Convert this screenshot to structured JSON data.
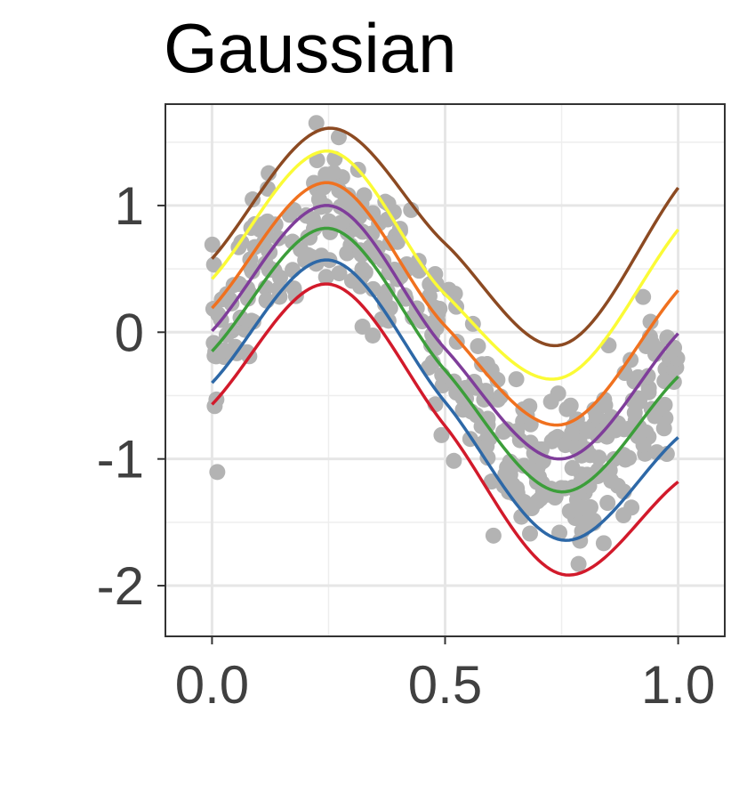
{
  "chart_data": {
    "type": "scatter",
    "title": "Gaussian",
    "xlabel": "",
    "ylabel": "",
    "xlim": [
      -0.1,
      1.1
    ],
    "ylim": [
      -2.4,
      1.8
    ],
    "x_ticks": [
      "0.0",
      "0.5",
      "1.0"
    ],
    "y_ticks": [
      "1",
      "0",
      "-1",
      "-2"
    ],
    "grid": true,
    "legend": "none",
    "point_color": "#b3b3b3",
    "points": {
      "description_values": "noisy sine samples",
      "x_min": 0.0,
      "x_max": 1.0,
      "count": 400
    },
    "series": [
      {
        "color": "#8c4a22",
        "values_at_x": {
          "0.0": 0.58,
          "0.25": 1.61,
          "0.5": 0.7,
          "0.75": -0.1,
          "1.0": 1.14
        }
      },
      {
        "color": "#fbfb36",
        "values_at_x": {
          "0.0": 0.42,
          "0.25": 1.43,
          "0.5": 0.3,
          "0.75": -0.36,
          "1.0": 0.81
        }
      },
      {
        "color": "#f0711f",
        "values_at_x": {
          "0.0": 0.19,
          "0.25": 1.18,
          "0.5": 0.05,
          "0.75": -0.73,
          "1.0": 0.33
        }
      },
      {
        "color": "#7f3d9a",
        "values_at_x": {
          "0.0": 0.01,
          "0.25": 1.0,
          "0.5": -0.13,
          "0.75": -1.0,
          "1.0": -0.01
        }
      },
      {
        "color": "#3c9e3a",
        "values_at_x": {
          "0.0": -0.15,
          "0.25": 0.82,
          "0.5": -0.3,
          "0.75": -1.26,
          "1.0": -0.35
        }
      },
      {
        "color": "#2d68a7",
        "values_at_x": {
          "0.0": -0.4,
          "0.25": 0.57,
          "0.5": -0.55,
          "0.75": -1.64,
          "1.0": -0.83
        }
      },
      {
        "color": "#d21a2b",
        "values_at_x": {
          "0.0": -0.57,
          "0.25": 0.38,
          "0.5": -0.74,
          "0.75": -1.91,
          "1.0": -1.18
        }
      }
    ]
  }
}
